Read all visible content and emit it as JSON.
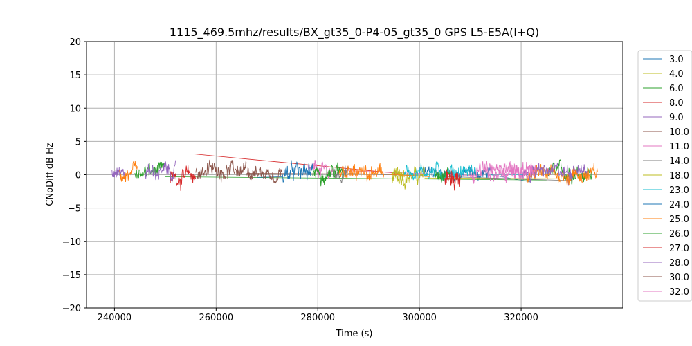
{
  "chart_data": {
    "type": "line",
    "title": "1115_469.5mhz/results/BX_gt35_0-P4-05_gt35_0 GPS L5-E5A(I+Q)",
    "xlabel": "Time (s)",
    "ylabel": "CNoDiff dB Hz",
    "xlim": [
      234500,
      340000
    ],
    "ylim": [
      -20,
      20
    ],
    "x_ticks": [
      240000,
      260000,
      280000,
      300000,
      320000
    ],
    "x_tick_labels": [
      "240000",
      "260000",
      "280000",
      "300000",
      "320000"
    ],
    "y_ticks": [
      -20,
      -15,
      -10,
      -5,
      0,
      5,
      10,
      15,
      20
    ],
    "y_tick_labels": [
      "−20",
      "−15",
      "−10",
      "−5",
      "0",
      "5",
      "10",
      "15",
      "20"
    ],
    "grid": true,
    "legend_position": "outside-right",
    "series": [
      {
        "name": "3.0",
        "color": "#1f77b4",
        "segments": [
          [
            300000,
            314000
          ]
        ],
        "center": 0.2,
        "amp": 0.8,
        "flat": [
          [
            314000,
            0.0
          ],
          [
            322000,
            -1.1
          ]
        ]
      },
      {
        "name": "4.0",
        "color": "#bcbd22",
        "segments": [
          [
            294500,
            301000
          ]
        ],
        "center": -0.2,
        "amp": 1.0,
        "flat": [
          [
            301000,
            -0.5
          ],
          [
            327000,
            -0.6
          ]
        ]
      },
      {
        "name": "6.0",
        "color": "#2ca02c",
        "segments": [
          [
            244000,
            250000
          ],
          [
            325000,
            334000
          ]
        ],
        "center": 0.4,
        "amp": 1.0,
        "flat": [
          [
            250000,
            -0.3
          ],
          [
            325000,
            -0.8
          ]
        ]
      },
      {
        "name": "8.0",
        "color": "#d62728",
        "segments": [
          [
            251000,
            256000
          ]
        ],
        "center": -0.3,
        "amp": 1.1,
        "flat": [
          [
            255800,
            3.1
          ],
          [
            296000,
            0.2
          ]
        ]
      },
      {
        "name": "9.0",
        "color": "#9467bd",
        "segments": [
          [
            239500,
            242000
          ],
          [
            329000,
            333000
          ]
        ],
        "center": 0.2,
        "amp": 1.0,
        "flat": []
      },
      {
        "name": "10.0",
        "color": "#8c564b",
        "segments": [
          [
            256000,
            266000
          ]
        ],
        "center": 0.7,
        "amp": 1.0,
        "flat": [
          [
            266000,
            0.2
          ],
          [
            290000,
            0.1
          ]
        ]
      },
      {
        "name": "11.0",
        "color": "#e377c2",
        "segments": [
          [
            278000,
            283000
          ],
          [
            313000,
            323000
          ]
        ],
        "center": 0.5,
        "amp": 1.1,
        "flat": [
          [
            283000,
            0.7
          ],
          [
            313000,
            -0.2
          ]
        ]
      },
      {
        "name": "14.0",
        "color": "#7f7f7f",
        "segments": [
          [
            283000,
            286000
          ]
        ],
        "center": 0.3,
        "amp": 0.8,
        "flat": [
          [
            286000,
            0.2
          ],
          [
            330000,
            -0.9
          ]
        ]
      },
      {
        "name": "18.0",
        "color": "#bcbd22",
        "segments": [
          [
            294500,
            297000
          ]
        ],
        "center": 0.2,
        "amp": 0.9,
        "flat": []
      },
      {
        "name": "23.0",
        "color": "#17becf",
        "segments": [
          [
            297000,
            311000
          ]
        ],
        "center": 0.5,
        "amp": 0.9,
        "flat": [
          [
            311000,
            0.1
          ],
          [
            322000,
            0.0
          ]
        ]
      },
      {
        "name": "24.0",
        "color": "#1f77b4",
        "segments": [
          [
            273000,
            279000
          ]
        ],
        "center": 0.3,
        "amp": 1.2,
        "flat": [
          [
            268000,
            -0.4
          ],
          [
            273000,
            -0.3
          ]
        ]
      },
      {
        "name": "25.0",
        "color": "#ff7f0e",
        "segments": [
          [
            241000,
            244500
          ],
          [
            284000,
            293000
          ],
          [
            321000,
            335000
          ]
        ],
        "center": 0.0,
        "amp": 1.1,
        "flat": [
          [
            293000,
            0.1
          ],
          [
            302000,
            -0.3
          ]
        ]
      },
      {
        "name": "26.0",
        "color": "#2ca02c",
        "segments": [
          [
            279000,
            285000
          ],
          [
            303000,
            306000
          ]
        ],
        "center": 0.5,
        "amp": 1.0,
        "flat": []
      },
      {
        "name": "27.0",
        "color": "#d62728",
        "segments": [
          [
            305000,
            308000
          ]
        ],
        "center": -0.6,
        "amp": 1.5,
        "flat": []
      },
      {
        "name": "28.0",
        "color": "#9467bd",
        "segments": [
          [
            246000,
            252000
          ],
          [
            320000,
            330000
          ]
        ],
        "center": 0.4,
        "amp": 0.9,
        "flat": []
      },
      {
        "name": "30.0",
        "color": "#8c564b",
        "segments": [
          [
            266000,
            273000
          ]
        ],
        "center": 0.3,
        "amp": 0.9,
        "flat": []
      },
      {
        "name": "32.0",
        "color": "#e377c2",
        "segments": [
          [
            310000,
            323000
          ]
        ],
        "center": 0.6,
        "amp": 1.0,
        "flat": []
      }
    ]
  }
}
